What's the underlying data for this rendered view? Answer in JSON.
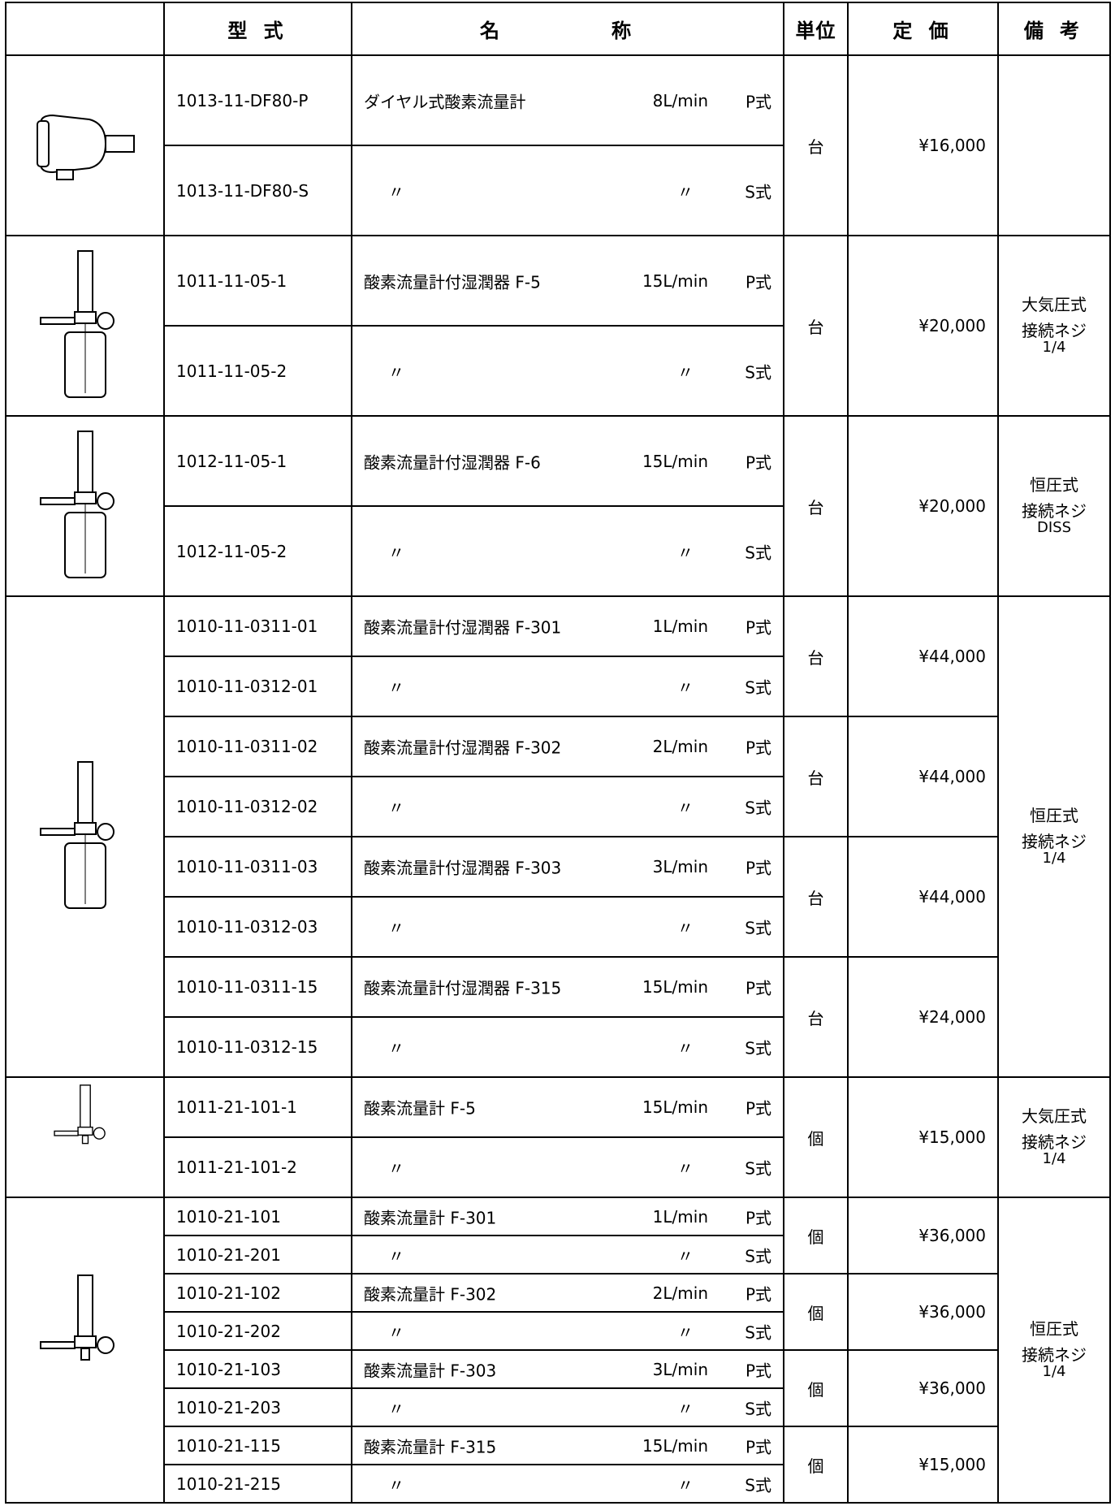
{
  "header": [
    "型 式",
    "名　　称",
    "単位",
    "定 価",
    "備 考"
  ],
  "sections": [
    {
      "pairs": [
        {
          "unit": "台",
          "price": "¥16,000",
          "rows": [
            {
              "model": "1013-11-DF80-P",
              "name": "ダイヤル式酸素流量計",
              "flow": "8L/min",
              "type": "P式"
            },
            {
              "model": "1013-11-DF80-S",
              "name": "〃",
              "flow": "〃",
              "type": "S式"
            }
          ]
        }
      ]
    },
    {
      "remarks": [
        "大気圧式",
        "接続ネジ",
        "1/4"
      ],
      "pairs": [
        {
          "unit": "台",
          "price": "¥20,000",
          "rows": [
            {
              "model": "1011-11-05-1",
              "name": "酸素流量計付湿潤器 F-5",
              "flow": "15L/min",
              "type": "P式"
            },
            {
              "model": "1011-11-05-2",
              "name": "〃",
              "flow": "〃",
              "type": "S式"
            }
          ]
        }
      ]
    },
    {
      "remarks": [
        "恒圧式",
        "接続ネジ",
        "DISS"
      ],
      "pairs": [
        {
          "unit": "台",
          "price": "¥20,000",
          "rows": [
            {
              "model": "1012-11-05-1",
              "name": "酸素流量計付湿潤器 F-6",
              "flow": "15L/min",
              "type": "P式"
            },
            {
              "model": "1012-11-05-2",
              "name": "〃",
              "flow": "〃",
              "type": "S式"
            }
          ]
        }
      ]
    },
    {
      "remarks": [
        "恒圧式",
        "接続ネジ",
        "1/4"
      ],
      "pairs": [
        {
          "unit": "台",
          "price": "¥44,000",
          "rows": [
            {
              "model": "1010-11-0311-01",
              "name": "酸素流量計付湿潤器 F-301",
              "flow": "1L/min",
              "type": "P式"
            },
            {
              "model": "1010-11-0312-01",
              "name": "〃",
              "flow": "〃",
              "type": "S式"
            }
          ]
        },
        {
          "unit": "台",
          "price": "¥44,000",
          "rows": [
            {
              "model": "1010-11-0311-02",
              "name": "酸素流量計付湿潤器 F-302",
              "flow": "2L/min",
              "type": "P式"
            },
            {
              "model": "1010-11-0312-02",
              "name": "〃",
              "flow": "〃",
              "type": "S式"
            }
          ]
        },
        {
          "unit": "台",
          "price": "¥44,000",
          "rows": [
            {
              "model": "1010-11-0311-03",
              "name": "酸素流量計付湿潤器 F-303",
              "flow": "3L/min",
              "type": "P式"
            },
            {
              "model": "1010-11-0312-03",
              "name": "〃",
              "flow": "〃",
              "type": "S式"
            }
          ]
        },
        {
          "unit": "台",
          "price": "¥24,000",
          "rows": [
            {
              "model": "1010-11-0311-15",
              "name": "酸素流量計付湿潤器 F-315",
              "flow": "15L/min",
              "type": "P式"
            },
            {
              "model": "1010-11-0312-15",
              "name": "〃",
              "flow": "〃",
              "type": "S式"
            }
          ]
        }
      ]
    },
    {
      "remarks": [
        "大気圧式",
        "接続ネジ",
        "1/4"
      ],
      "pairs": [
        {
          "unit": "個",
          "price": "¥15,000",
          "rows": [
            {
              "model": "1011-21-101-1",
              "name": "酸素流量計 F-5",
              "flow": "15L/min",
              "type": "P式"
            },
            {
              "model": "1011-21-101-2",
              "name": "〃",
              "flow": "〃",
              "type": "S式"
            }
          ]
        }
      ]
    },
    {
      "remarks": [
        "恒圧式",
        "接続ネジ",
        "1/4"
      ],
      "pairs": [
        {
          "unit": "個",
          "price": "¥36,000",
          "rows": [
            {
              "model": "1010-21-101",
              "name": "酸素流量計 F-301",
              "flow": "1L/min",
              "type": "P式"
            },
            {
              "model": "1010-21-201",
              "name": "〃",
              "flow": "〃",
              "type": "S式"
            }
          ]
        },
        {
          "unit": "個",
          "price": "¥36,000",
          "rows": [
            {
              "model": "1010-21-102",
              "name": "酸素流量計 F-302",
              "flow": "2L/min",
              "type": "P式"
            },
            {
              "model": "1010-21-202",
              "name": "〃",
              "flow": "〃",
              "type": "S式"
            }
          ]
        },
        {
          "unit": "個",
          "price": "¥36,000",
          "rows": [
            {
              "model": "1010-21-103",
              "name": "酸素流量計 F-303",
              "flow": "3L/min",
              "type": "P式"
            },
            {
              "model": "1010-21-203",
              "name": "〃",
              "flow": "〃",
              "type": "S式"
            }
          ]
        },
        {
          "unit": "個",
          "price": "¥15,000",
          "rows": [
            {
              "model": "1010-21-115",
              "name": "酸素流量計 F-315",
              "flow": "15L/min",
              "type": "P式"
            },
            {
              "model": "1010-21-215",
              "name": "〃",
              "flow": "〃",
              "type": "S式"
            }
          ]
        }
      ]
    }
  ]
}
